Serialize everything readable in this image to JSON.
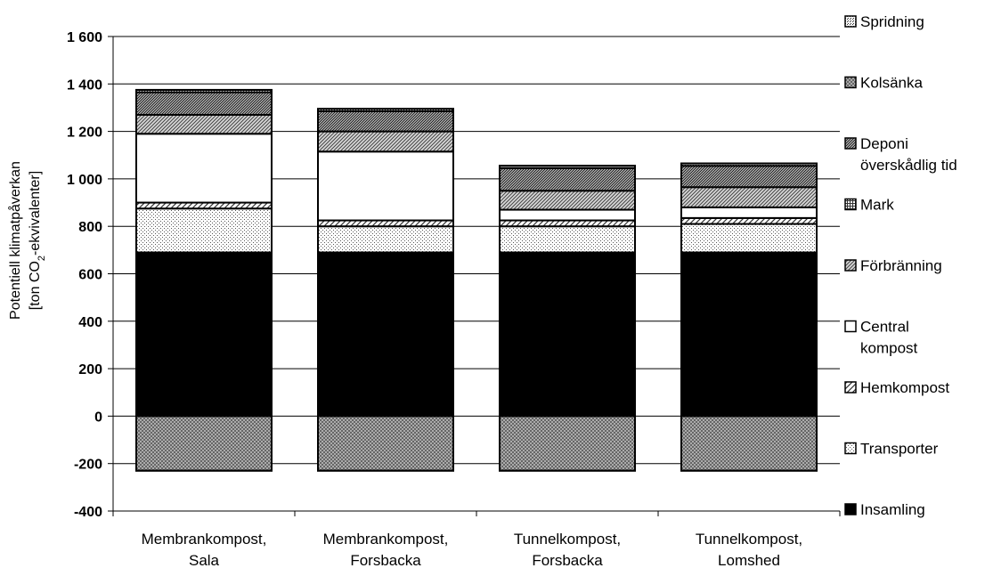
{
  "chart_data": {
    "type": "bar",
    "stacked": true,
    "ylabel_line1": "Potentiell klimatpåverkan",
    "ylabel_line2_pre": "[ton CO",
    "ylabel_line2_sub": "2",
    "ylabel_line2_post": "-ekvivalenter]",
    "ylim": [
      -400,
      1600
    ],
    "yticks": [
      -400,
      -200,
      0,
      200,
      400,
      600,
      800,
      1000,
      1200,
      1400,
      1600
    ],
    "ytick_labels": [
      "-400",
      "-200",
      "0",
      "200",
      "400",
      "600",
      "800",
      "1 000",
      "1 200",
      "1 400",
      "1 600"
    ],
    "grid": true,
    "legend_position": "right",
    "categories": [
      [
        "Membrankompost,",
        "Sala"
      ],
      [
        "Membrankompost,",
        "Forsbacka"
      ],
      [
        "Tunnelkompost,",
        "Forsbacka"
      ],
      [
        "Tunnelkompost,",
        "Lomshed"
      ]
    ],
    "series": [
      {
        "name": "Insamling",
        "values": [
          690,
          690,
          690,
          690
        ],
        "pattern": "solid-black"
      },
      {
        "name": "Transporter",
        "values": [
          185,
          110,
          110,
          120
        ],
        "pattern": "light-dots"
      },
      {
        "name": "Hemkompost",
        "values": [
          25,
          25,
          25,
          25
        ],
        "pattern": "diagonal"
      },
      {
        "name": "Central kompost",
        "values": [
          290,
          290,
          45,
          45
        ],
        "pattern": "white"
      },
      {
        "name": "Förbränning",
        "values": [
          80,
          85,
          80,
          85
        ],
        "pattern": "diag-dense"
      },
      {
        "name": "Mark",
        "values": [
          0,
          0,
          0,
          0
        ],
        "pattern": "grid"
      },
      {
        "name": "Deponi överskådlig tid",
        "values": [
          95,
          85,
          95,
          90
        ],
        "pattern": "dense-dots"
      },
      {
        "name": "Kolsänka",
        "values": [
          -230,
          -230,
          -230,
          -230
        ],
        "pattern": "crosshatch"
      },
      {
        "name": "Spridning",
        "values": [
          10,
          10,
          10,
          10
        ],
        "pattern": "medium-dots"
      }
    ],
    "legend": [
      {
        "lines": [
          "Spridning"
        ],
        "pattern": "medium-dots"
      },
      {
        "lines": [
          "Kolsänka"
        ],
        "pattern": "crosshatch"
      },
      {
        "lines": [
          "Deponi",
          "överskådlig tid"
        ],
        "pattern": "dense-dots"
      },
      {
        "lines": [
          "Mark"
        ],
        "pattern": "grid"
      },
      {
        "lines": [
          "Förbränning"
        ],
        "pattern": "diag-dense"
      },
      {
        "lines": [
          "Central",
          "kompost"
        ],
        "pattern": "white"
      },
      {
        "lines": [
          "Hemkompost"
        ],
        "pattern": "diagonal"
      },
      {
        "lines": [
          "Transporter"
        ],
        "pattern": "light-dots"
      },
      {
        "lines": [
          "Insamling"
        ],
        "pattern": "solid-black"
      }
    ]
  }
}
